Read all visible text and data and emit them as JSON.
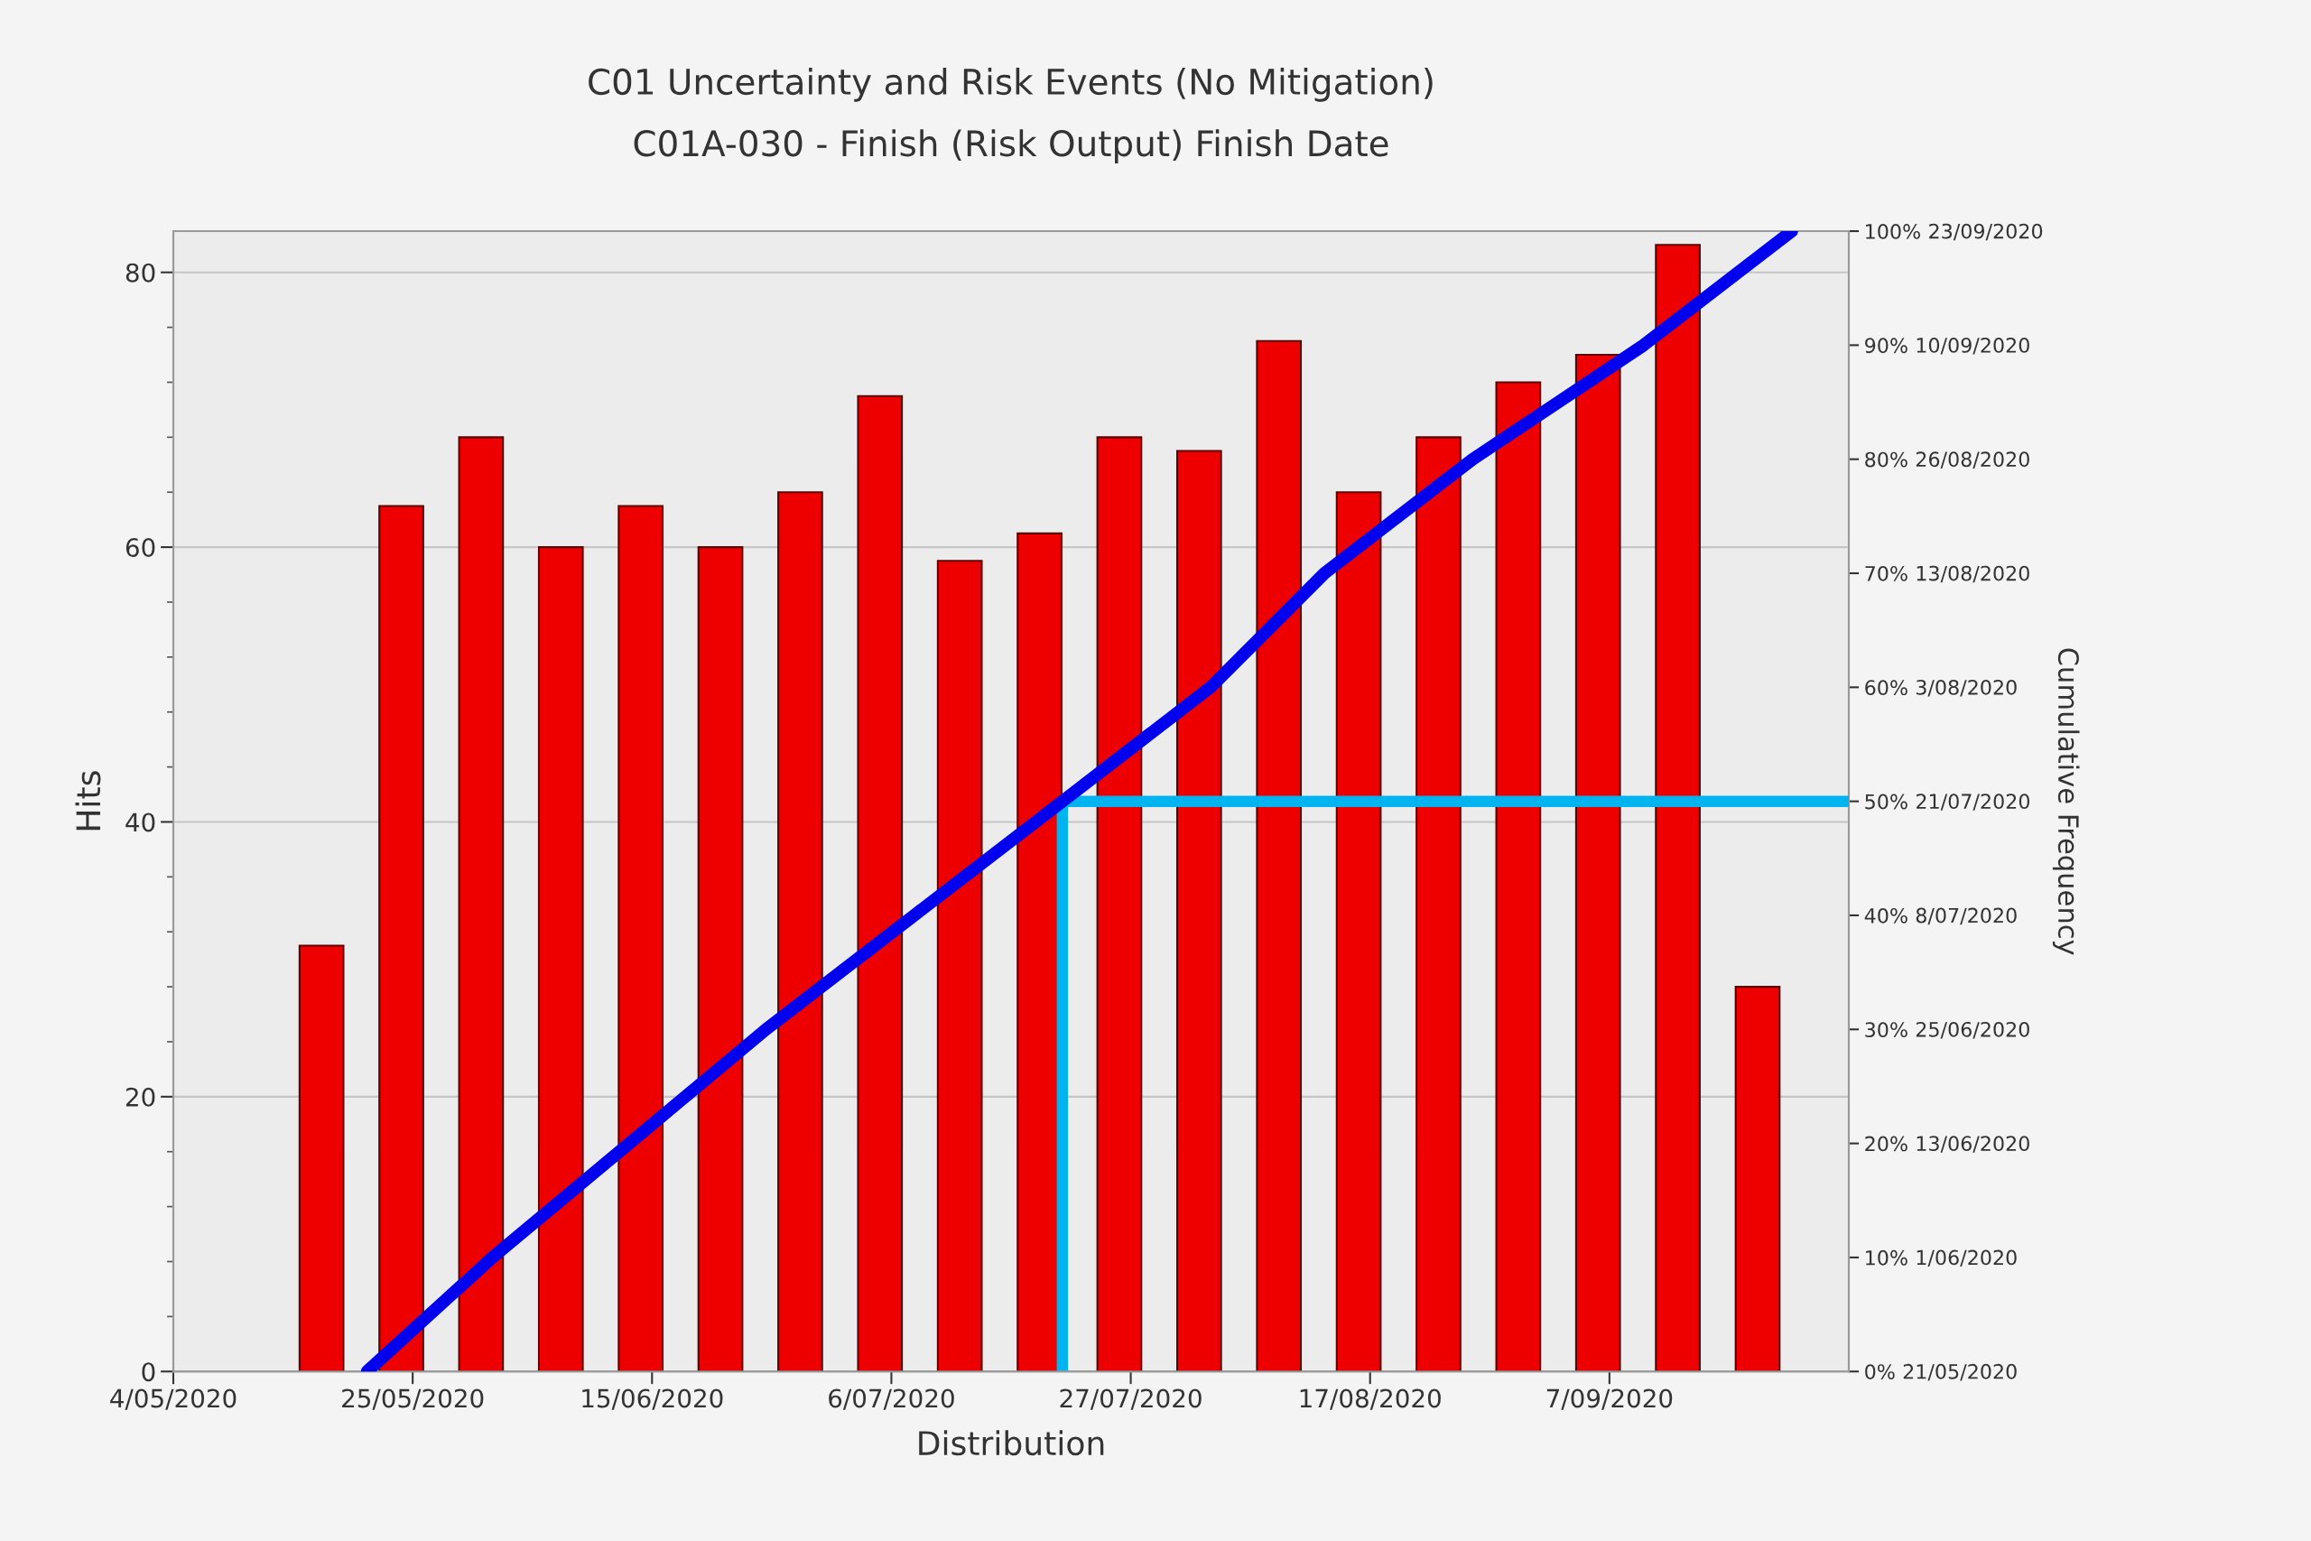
{
  "chart_data": {
    "type": "bar",
    "title": "C01 Uncertainty and Risk Events (No Mitigation)",
    "subtitle": "C01A-030 - Finish (Risk Output) Finish Date",
    "xlabel": "Distribution",
    "ylabel": "Hits",
    "y2label": "Cumulative Frequency",
    "x": [
      "2020-05-17",
      "2020-05-24",
      "2020-05-31",
      "2020-06-07",
      "2020-06-14",
      "2020-06-21",
      "2020-06-28",
      "2020-07-05",
      "2020-07-12",
      "2020-07-19",
      "2020-07-26",
      "2020-08-02",
      "2020-08-09",
      "2020-08-16",
      "2020-08-23",
      "2020-08-30",
      "2020-09-06",
      "2020-09-13",
      "2020-09-20"
    ],
    "series": [
      {
        "color": "#ee0000",
        "values": [
          31,
          63,
          68,
          60,
          63,
          60,
          64,
          71,
          59,
          61,
          68,
          67,
          75,
          64,
          68,
          72,
          74,
          82,
          28
        ]
      },
      {
        "type": "line",
        "axis": "y2",
        "color": "#0000ee",
        "x": [
          "2020-05-21",
          "2020-06-01",
          "2020-06-13",
          "2020-06-25",
          "2020-07-08",
          "2020-07-21",
          "2020-08-03",
          "2020-08-13",
          "2020-08-26",
          "2020-09-10",
          "2020-09-23"
        ],
        "values": [
          0,
          10,
          20,
          30,
          40,
          50,
          60,
          70,
          80,
          90,
          100
        ]
      }
    ],
    "xlim": [
      "2020-05-04",
      "2020-09-28"
    ],
    "xticks": [
      {
        "value": "2020-05-04",
        "label": "4/05/2020"
      },
      {
        "value": "2020-05-25",
        "label": "25/05/2020"
      },
      {
        "value": "2020-06-15",
        "label": "15/06/2020"
      },
      {
        "value": "2020-07-06",
        "label": "6/07/2020"
      },
      {
        "value": "2020-07-27",
        "label": "27/07/2020"
      },
      {
        "value": "2020-08-17",
        "label": "17/08/2020"
      },
      {
        "value": "2020-09-07",
        "label": "7/09/2020"
      }
    ],
    "ylim": [
      0,
      83
    ],
    "yticks": [
      0,
      {
        "value": 4,
        "label": null
      },
      {
        "value": 8,
        "label": null
      },
      {
        "value": 12,
        "label": null
      },
      {
        "value": 16,
        "label": null
      },
      20,
      {
        "value": 24,
        "label": null
      },
      {
        "value": 28,
        "label": null
      },
      {
        "value": 32,
        "label": null
      },
      {
        "value": 36,
        "label": null
      },
      40,
      {
        "value": 44,
        "label": null
      },
      {
        "value": 48,
        "label": null
      },
      {
        "value": 52,
        "label": null
      },
      {
        "value": 56,
        "label": null
      },
      60,
      {
        "value": 64,
        "label": null
      },
      {
        "value": 68,
        "label": null
      },
      {
        "value": 72,
        "label": null
      },
      {
        "value": 76,
        "label": null
      },
      80
    ],
    "y2lim": [
      0,
      100
    ],
    "y2ticks": [
      {
        "value": 0,
        "label": "0%"
      },
      {
        "value": 10,
        "label": "10%"
      },
      {
        "value": 20,
        "label": "20%"
      },
      {
        "value": 30,
        "label": "30%"
      },
      {
        "value": 40,
        "label": "40%"
      },
      {
        "value": 50,
        "label": "50%"
      },
      {
        "value": 60,
        "label": "60%"
      },
      {
        "value": 70,
        "label": "70%"
      },
      {
        "value": 80,
        "label": "80%"
      },
      {
        "value": 90,
        "label": "90%"
      },
      {
        "value": 100,
        "label": "100%"
      }
    ],
    "annotations": [
      "21/05/2020",
      "1/06/2020",
      "13/06/2020",
      "25/06/2020",
      "8/07/2020",
      "21/07/2020",
      "3/08/2020",
      "13/08/2020",
      "26/08/2020",
      "10/09/2020",
      "23/09/2020"
    ],
    "ref_lines": [
      {
        "axis": "x",
        "value": "2020-07-21",
        "color": "#00b4f0"
      },
      {
        "axis": "y2",
        "value": 50,
        "color": "#00b4f0"
      }
    ],
    "grid": "y"
  }
}
